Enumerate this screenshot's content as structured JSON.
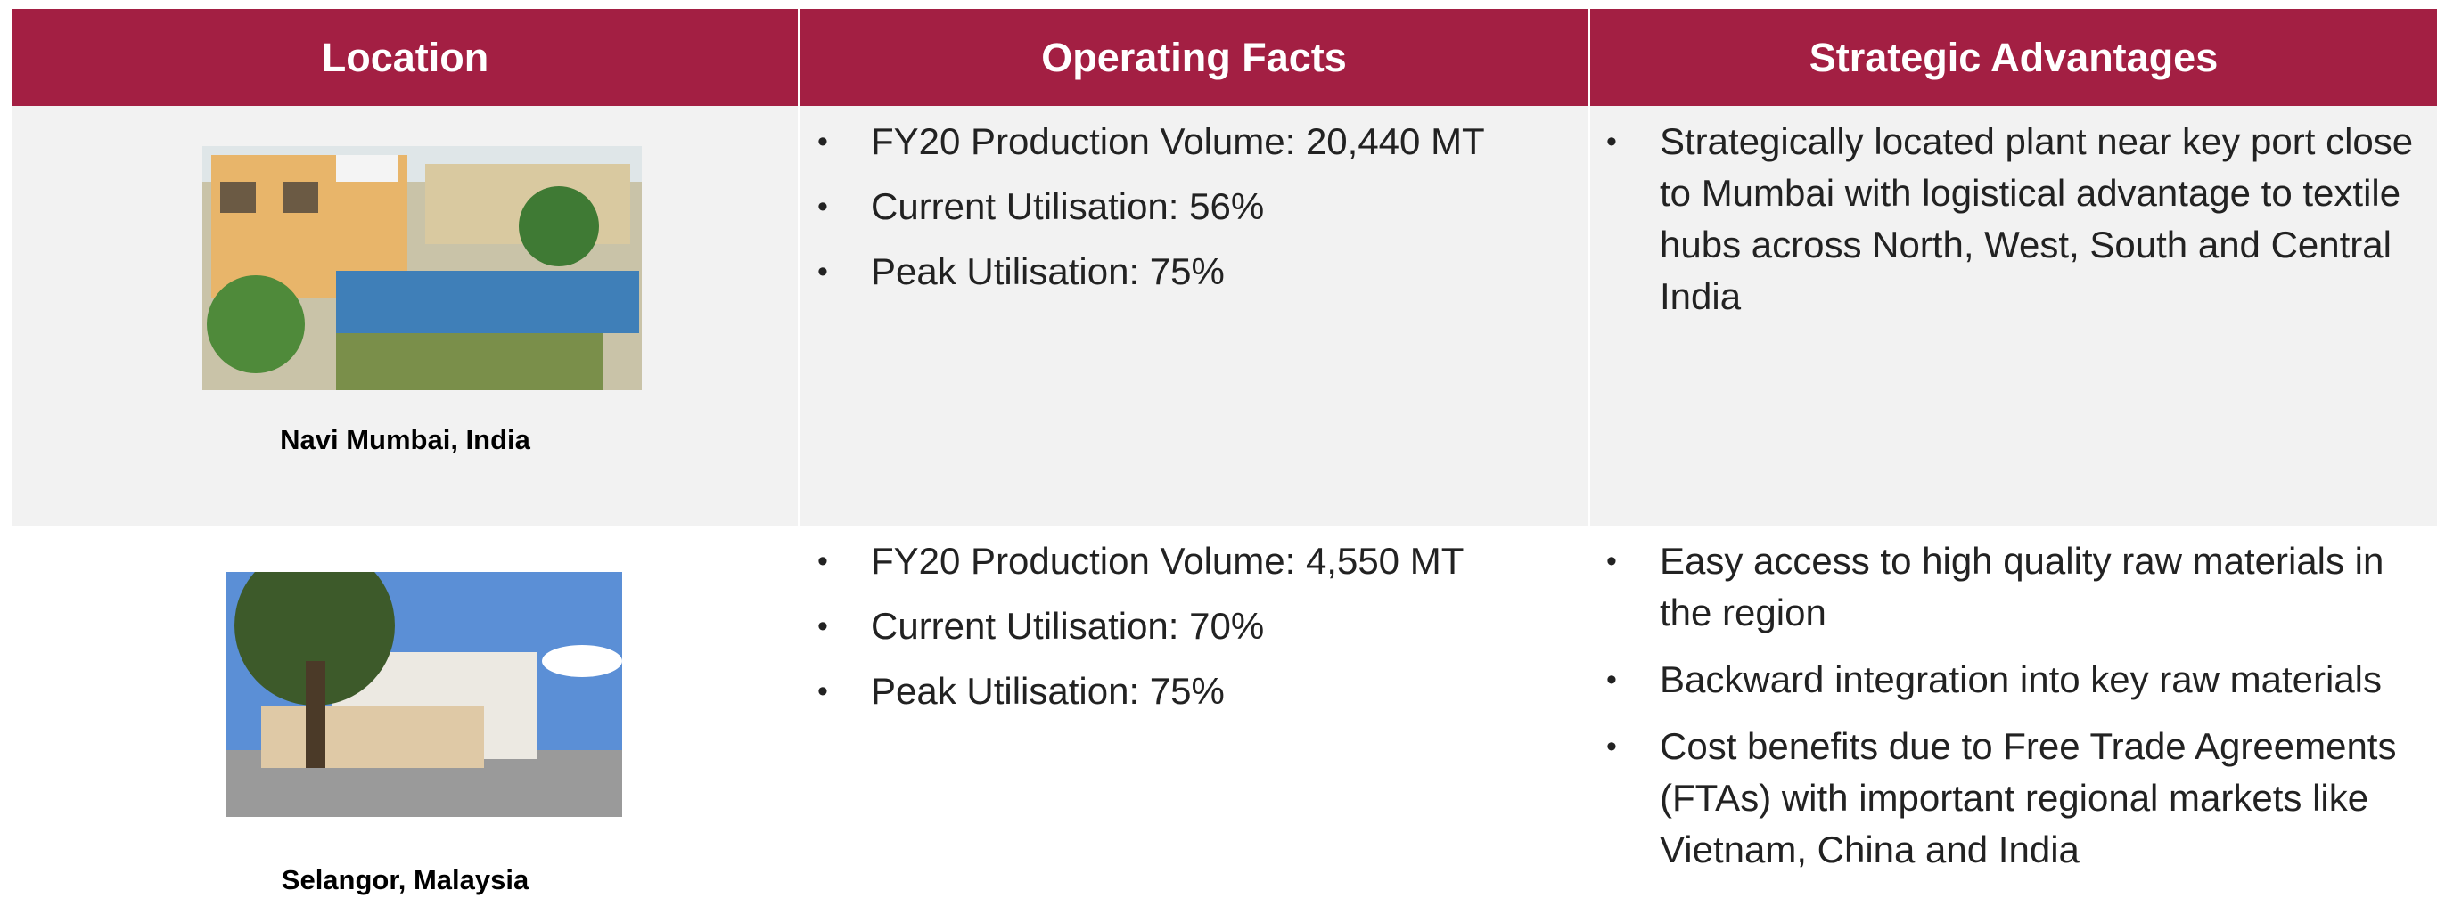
{
  "table": {
    "header": [
      "Location",
      "Operating Facts",
      "Strategic Advantages"
    ],
    "rows": [
      {
        "location": "Navi Mumbai, India",
        "facts": [
          "FY20 Production Volume: 20,440 MT",
          "Current Utilisation: 56%",
          "Peak Utilisation: 75%"
        ],
        "advantages": [
          "Strategically located plant near key port close to Mumbai with logistical advantage to textile hubs across North, West, South and Central India"
        ]
      },
      {
        "location": "Selangor, Malaysia",
        "facts": [
          "FY20 Production Volume: 4,550 MT",
          "Current Utilisation: 70%",
          "Peak Utilisation: 75%"
        ],
        "advantages": [
          "Easy access to high quality raw materials in the region",
          "Backward integration into key raw materials",
          "Cost benefits due to Free Trade Agreements (FTAs) with important regional markets like Vietnam, China and India"
        ]
      }
    ]
  }
}
